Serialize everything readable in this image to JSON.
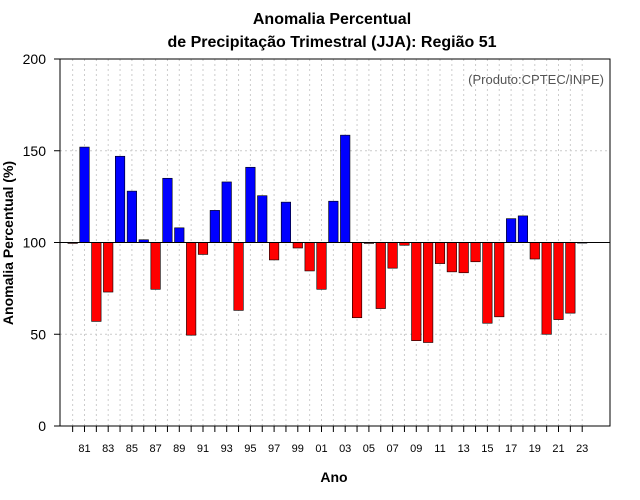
{
  "chart_data": {
    "type": "bar",
    "title": [
      "Anomalia Percentual",
      "de Precipitação Trimestral (JJA): Região 51"
    ],
    "xlabel": "Ano",
    "ylabel": "Anomalia Percentual (%)",
    "credit": "(Produto:CPTEC/INPE)",
    "ylim": [
      0,
      200
    ],
    "yticks": [
      0,
      50,
      100,
      150,
      200
    ],
    "baseline": 100,
    "grid": true,
    "colors": {
      "above": "#0000ff",
      "below": "#ff0000",
      "frame": "#000000",
      "grid": "#cccccc"
    },
    "years": [
      "80",
      "81",
      "82",
      "83",
      "84",
      "85",
      "86",
      "87",
      "88",
      "89",
      "90",
      "91",
      "92",
      "93",
      "94",
      "95",
      "96",
      "97",
      "98",
      "99",
      "00",
      "01",
      "02",
      "03",
      "04",
      "05",
      "06",
      "07",
      "08",
      "09",
      "10",
      "11",
      "12",
      "13",
      "14",
      "15",
      "16",
      "17",
      "18",
      "19",
      "20",
      "21",
      "22",
      "23"
    ],
    "xtick_labels": [
      "81",
      "83",
      "85",
      "87",
      "89",
      "91",
      "93",
      "95",
      "97",
      "99",
      "01",
      "03",
      "05",
      "07",
      "09",
      "11",
      "13",
      "15",
      "17",
      "19",
      "21",
      "23"
    ],
    "values": [
      99.5,
      152,
      57,
      73,
      147,
      128,
      101.5,
      74.5,
      135,
      108,
      49.5,
      93.5,
      117.5,
      133,
      63,
      141,
      125.5,
      90.5,
      122,
      97,
      84.5,
      74.5,
      122.5,
      158.5,
      59,
      99.5,
      64,
      86,
      98.5,
      46.5,
      45.5,
      88.5,
      84,
      83.5,
      89.5,
      56,
      59.5,
      113,
      114.5,
      91,
      50,
      58,
      61.5,
      100
    ]
  }
}
